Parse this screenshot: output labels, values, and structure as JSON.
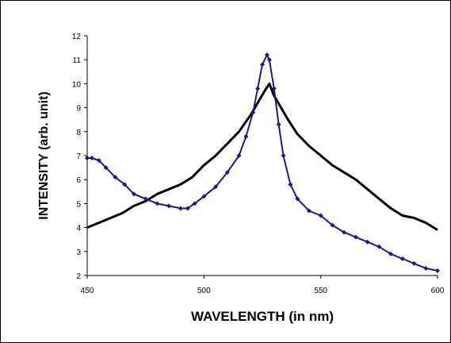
{
  "chart_data": {
    "type": "line",
    "title": "",
    "xlabel": "WAVELENGTH (in nm)",
    "ylabel": "INTENSITY (arb. unit)",
    "xlim": [
      450,
      600
    ],
    "ylim": [
      2,
      12
    ],
    "xticks": [
      450,
      500,
      550,
      600
    ],
    "yticks": [
      2,
      3,
      4,
      5,
      6,
      7,
      8,
      9,
      10,
      11,
      12
    ],
    "grid": false,
    "legend": "none",
    "series": [
      {
        "color": "#000000",
        "marker": "none",
        "x": [
          450,
          455,
          460,
          465,
          470,
          475,
          480,
          485,
          490,
          495,
          500,
          505,
          510,
          515,
          520,
          523,
          526,
          528,
          530,
          533,
          536,
          540,
          545,
          550,
          555,
          560,
          565,
          570,
          575,
          580,
          585,
          590,
          595,
          600
        ],
        "y": [
          4.0,
          4.2,
          4.4,
          4.6,
          4.9,
          5.1,
          5.4,
          5.6,
          5.8,
          6.1,
          6.6,
          7.0,
          7.5,
          8.0,
          8.7,
          9.2,
          9.7,
          10.0,
          9.5,
          9.0,
          8.5,
          7.9,
          7.4,
          7.0,
          6.6,
          6.3,
          6.0,
          5.6,
          5.2,
          4.8,
          4.5,
          4.4,
          4.2,
          3.9
        ]
      },
      {
        "color": "#1a1a8c",
        "marker": "diamond",
        "x": [
          450,
          452,
          455,
          458,
          462,
          466,
          470,
          475,
          480,
          485,
          490,
          493,
          496,
          500,
          505,
          510,
          515,
          518,
          521,
          523,
          525,
          527,
          528,
          530,
          532,
          534,
          537,
          540,
          545,
          550,
          555,
          560,
          565,
          570,
          575,
          580,
          585,
          590,
          595,
          600
        ],
        "y": [
          6.9,
          6.9,
          6.8,
          6.5,
          6.1,
          5.8,
          5.4,
          5.2,
          5.0,
          4.9,
          4.8,
          4.8,
          5.0,
          5.3,
          5.7,
          6.3,
          7.0,
          7.8,
          8.8,
          9.8,
          10.8,
          11.2,
          11.0,
          9.8,
          8.3,
          7.0,
          5.8,
          5.2,
          4.7,
          4.5,
          4.1,
          3.8,
          3.6,
          3.4,
          3.2,
          2.9,
          2.7,
          2.5,
          2.3,
          2.2
        ]
      }
    ]
  }
}
